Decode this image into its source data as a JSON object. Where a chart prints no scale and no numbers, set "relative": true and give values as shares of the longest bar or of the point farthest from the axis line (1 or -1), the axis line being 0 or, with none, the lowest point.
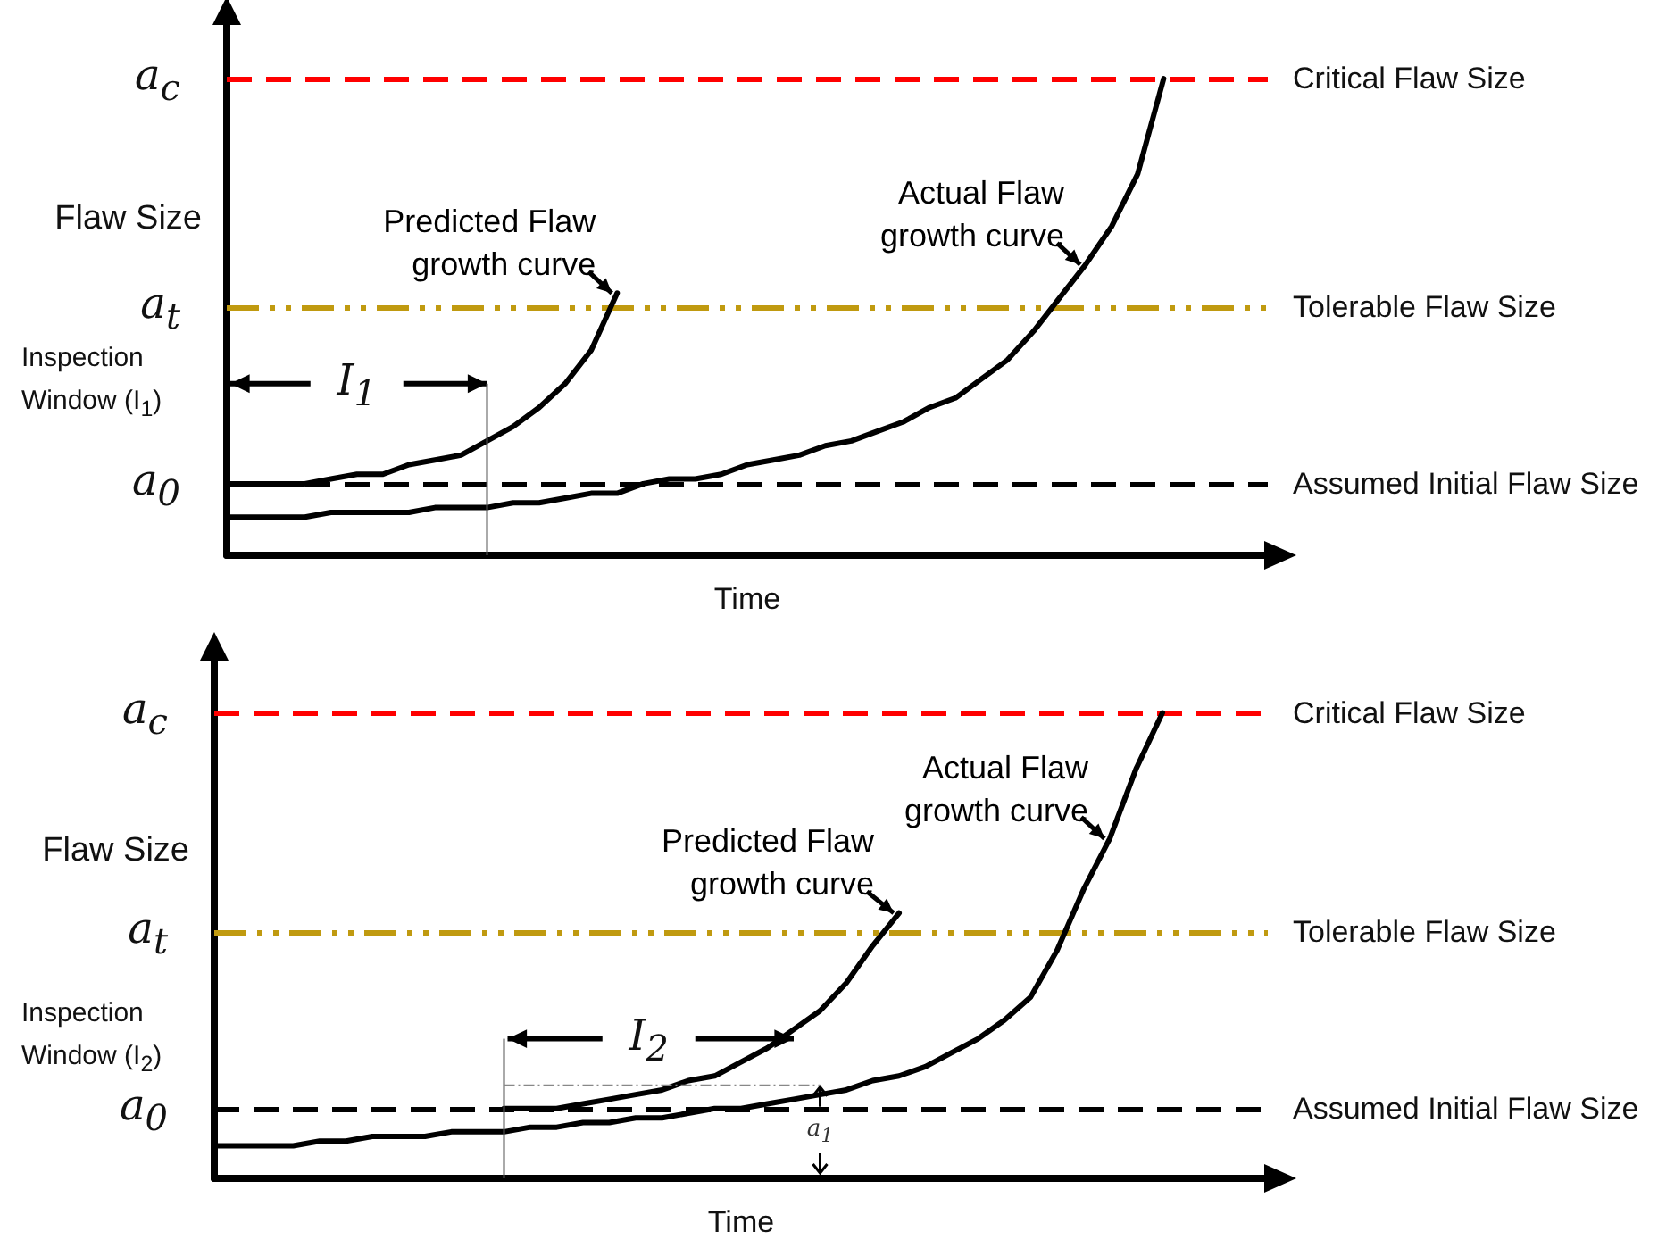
{
  "chart_data": [
    {
      "type": "line",
      "relative": true,
      "xlabel": "Time",
      "ylabel": "Flaw Size",
      "marker": "none",
      "line_style": "solid",
      "grid": false,
      "categories": [
        null,
        null,
        null,
        null,
        null,
        null,
        null,
        null,
        null,
        null,
        null,
        null,
        null,
        null,
        null,
        null,
        null,
        null,
        null,
        null,
        null,
        null,
        null,
        null,
        null,
        null,
        null,
        null,
        null,
        null,
        null,
        null,
        null,
        null,
        null,
        null,
        null,
        null,
        null,
        null,
        null
      ],
      "series": [
        {
          "name": "Predicted Flaw growth curve",
          "color": "#000000",
          "values": [
            0.15,
            0.15,
            0.15,
            0.15,
            0.16,
            0.17,
            0.17,
            0.19,
            0.2,
            0.21,
            0.24,
            0.27,
            0.31,
            0.36,
            0.43,
            0.55,
            null,
            null,
            null,
            null,
            null,
            null,
            null,
            null,
            null,
            null,
            null,
            null,
            null,
            null,
            null,
            null,
            null,
            null,
            null,
            null,
            null,
            null,
            null,
            null,
            null
          ]
        },
        {
          "name": "Actual Flaw growth curve",
          "color": "#000000",
          "values": [
            0.08,
            0.08,
            0.08,
            0.08,
            0.09,
            0.09,
            0.09,
            0.09,
            0.1,
            0.1,
            0.1,
            0.11,
            0.11,
            0.12,
            0.13,
            0.13,
            0.15,
            0.16,
            0.16,
            0.17,
            0.19,
            0.2,
            0.21,
            0.23,
            0.24,
            0.26,
            0.28,
            0.31,
            0.33,
            0.37,
            0.41,
            0.47,
            0.54,
            0.61,
            0.69,
            0.8,
            1.0,
            null,
            null,
            null,
            null
          ]
        }
      ],
      "ref_lines": [
        {
          "axis": "y",
          "value": 1.0,
          "label": "Critical Flaw Size",
          "color": "#ff0000",
          "line_style": "dashed"
        },
        {
          "axis": "y",
          "value": 0.52,
          "label": "Tolerable Flaw Size",
          "color": "#c09a10",
          "line_style": "dotted"
        },
        {
          "axis": "y",
          "value": 0.15,
          "label": "Assumed Initial Flaw Size",
          "color": "#000000",
          "line_style": "dashed"
        }
      ],
      "annotations": [
        "a$_{c}$",
        "a$_{t}$",
        "a$_{0}$",
        "Inspection Window (I$_{1}$)",
        "I$_{1}$"
      ]
    },
    {
      "type": "line",
      "relative": true,
      "xlabel": "Time",
      "ylabel": "Flaw Size",
      "marker": "none",
      "line_style": "solid",
      "grid": false,
      "categories": [
        null,
        null,
        null,
        null,
        null,
        null,
        null,
        null,
        null,
        null,
        null,
        null,
        null,
        null,
        null,
        null,
        null,
        null,
        null,
        null,
        null,
        null,
        null,
        null,
        null,
        null,
        null,
        null,
        null,
        null,
        null,
        null,
        null,
        null,
        null,
        null,
        null,
        null,
        null,
        null,
        null
      ],
      "series": [
        {
          "name": "Predicted Flaw growth curve",
          "color": "#000000",
          "values": [
            null,
            null,
            null,
            null,
            null,
            null,
            null,
            null,
            null,
            null,
            null,
            0.15,
            0.15,
            0.15,
            0.16,
            0.17,
            0.18,
            0.19,
            0.21,
            0.22,
            0.25,
            0.28,
            0.32,
            0.36,
            0.42,
            0.5,
            0.57,
            null,
            null,
            null,
            null,
            null,
            null,
            null,
            null,
            null,
            null,
            null,
            null,
            null,
            null
          ]
        },
        {
          "name": "Actual Flaw growth curve",
          "color": "#000000",
          "values": [
            0.07,
            0.07,
            0.07,
            0.07,
            0.08,
            0.08,
            0.09,
            0.09,
            0.09,
            0.1,
            0.1,
            0.1,
            0.11,
            0.11,
            0.12,
            0.12,
            0.13,
            0.13,
            0.14,
            0.15,
            0.15,
            0.16,
            0.17,
            0.18,
            0.19,
            0.21,
            0.22,
            0.24,
            0.27,
            0.3,
            0.34,
            0.39,
            0.49,
            0.62,
            0.73,
            0.88,
            1.0,
            null,
            null,
            null,
            null
          ]
        }
      ],
      "ref_lines": [
        {
          "axis": "y",
          "value": 1.0,
          "label": "Critical Flaw Size",
          "color": "#ff0000",
          "line_style": "dashed"
        },
        {
          "axis": "y",
          "value": 0.53,
          "label": "Tolerable Flaw Size",
          "color": "#c09a10",
          "line_style": "dotted"
        },
        {
          "axis": "y",
          "value": 0.15,
          "label": "Assumed Initial Flaw Size",
          "color": "#000000",
          "line_style": "dashed"
        }
      ],
      "annotations": [
        "a$_{c}$",
        "a$_{t}$",
        "a$_{0}$",
        "Inspection Window (I$_{2}$)",
        "I$_{2}$",
        {
          "text": "a$_{1}$",
          "y": 0.2
        }
      ]
    }
  ]
}
